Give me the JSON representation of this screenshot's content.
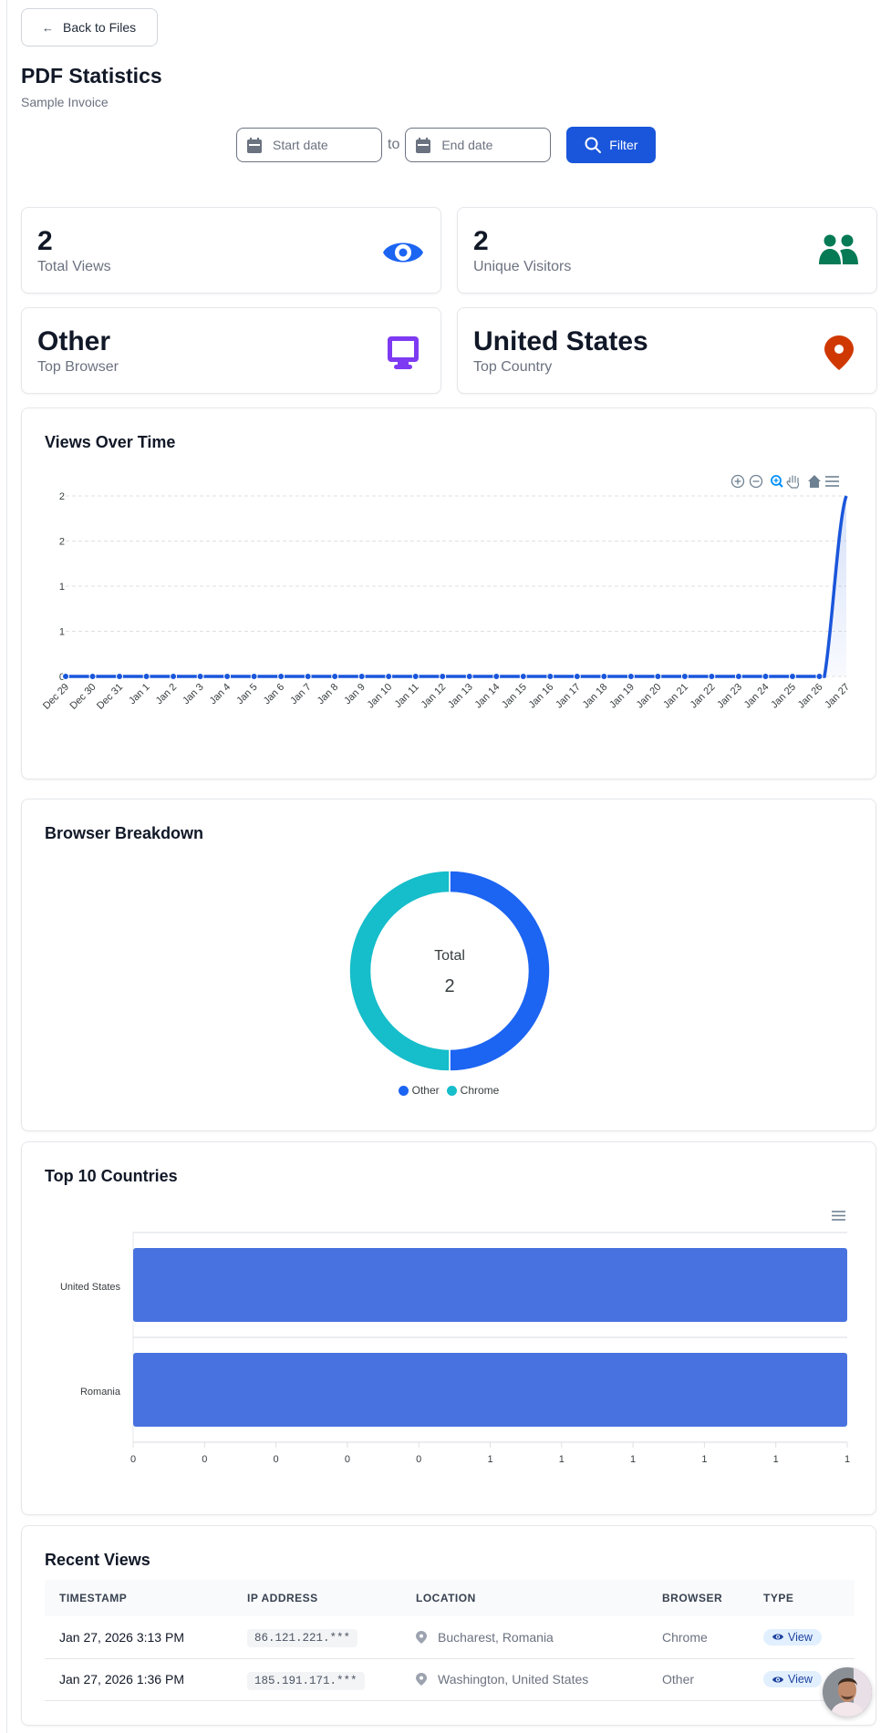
{
  "header": {
    "back_label": "Back to Files",
    "title": "PDF Statistics",
    "subtitle": "Sample Invoice"
  },
  "filter": {
    "start_placeholder": "Start date",
    "end_placeholder": "End date",
    "to_label": "to",
    "button_label": "Filter"
  },
  "stats": [
    {
      "value": "2",
      "label": "Total Views",
      "icon": "eye-icon",
      "color": "#1c64f2"
    },
    {
      "value": "2",
      "label": "Unique Visitors",
      "icon": "users-icon",
      "color": "#057a55"
    },
    {
      "value": "Other",
      "label": "Top Browser",
      "icon": "desktop-icon",
      "color": "#7e3af2"
    },
    {
      "value": "United States",
      "label": "Top Country",
      "icon": "map-pin-icon",
      "color": "#d03801"
    }
  ],
  "views_chart": {
    "title": "Views Over Time",
    "toolbar": [
      "zoom-in-icon",
      "zoom-out-icon",
      "selection-zoom-icon",
      "pan-hand-icon",
      "reset-home-icon",
      "menu-icon"
    ],
    "y_ticks": [
      "2",
      "2",
      "1",
      "1",
      "0"
    ],
    "line_color": "#1a56db"
  },
  "browser_chart": {
    "title": "Browser Breakdown",
    "center_label": "Total",
    "center_value": "2",
    "legend": [
      {
        "label": "Other",
        "color": "#1c64f2"
      },
      {
        "label": "Chrome",
        "color": "#16bdca"
      }
    ]
  },
  "countries_chart": {
    "title": "Top 10 Countries",
    "menu_icon": "menu-icon",
    "bar_color": "#4872e0",
    "x_ticks": [
      "0",
      "0",
      "0",
      "0",
      "0",
      "1",
      "1",
      "1",
      "1",
      "1",
      "1"
    ]
  },
  "recent_views": {
    "title": "Recent Views",
    "columns": [
      "TIMESTAMP",
      "IP ADDRESS",
      "LOCATION",
      "BROWSER",
      "TYPE"
    ],
    "rows": [
      {
        "timestamp": "Jan 27, 2026 3:13 PM",
        "ip": "86.121.221.***",
        "location": "Bucharest, Romania",
        "browser": "Chrome",
        "type": "View"
      },
      {
        "timestamp": "Jan 27, 2026 1:36 PM",
        "ip": "185.191.171.***",
        "location": "Washington, United States",
        "browser": "Other",
        "type": "View"
      }
    ]
  },
  "chart_data": [
    {
      "type": "area",
      "title": "Views Over Time",
      "xlabel": "",
      "ylabel": "",
      "categories": [
        "Dec 29",
        "Dec 30",
        "Dec 31",
        "Jan 1",
        "Jan 2",
        "Jan 3",
        "Jan 4",
        "Jan 5",
        "Jan 6",
        "Jan 7",
        "Jan 8",
        "Jan 9",
        "Jan 10",
        "Jan 11",
        "Jan 12",
        "Jan 13",
        "Jan 14",
        "Jan 15",
        "Jan 16",
        "Jan 17",
        "Jan 18",
        "Jan 19",
        "Jan 20",
        "Jan 21",
        "Jan 22",
        "Jan 23",
        "Jan 24",
        "Jan 25",
        "Jan 26",
        "Jan 27"
      ],
      "series": [
        {
          "name": "Views",
          "values": [
            0,
            0,
            0,
            0,
            0,
            0,
            0,
            0,
            0,
            0,
            0,
            0,
            0,
            0,
            0,
            0,
            0,
            0,
            0,
            0,
            0,
            0,
            0,
            0,
            0,
            0,
            0,
            0,
            0,
            2
          ]
        }
      ],
      "y_tick_labels": [
        "0",
        "1",
        "1",
        "2",
        "2"
      ],
      "ylim": [
        0,
        2
      ],
      "grid": true,
      "legend": "none"
    },
    {
      "type": "pie",
      "title": "Browser Breakdown",
      "donut": true,
      "categories": [
        "Other",
        "Chrome"
      ],
      "values": [
        1,
        1
      ],
      "center_text": "Total 2",
      "legend_position": "bottom"
    },
    {
      "type": "bar",
      "orientation": "horizontal",
      "title": "Top 10 Countries",
      "categories": [
        "United States",
        "Romania"
      ],
      "values": [
        1,
        1
      ],
      "x_tick_labels": [
        "0",
        "0",
        "0",
        "0",
        "0",
        "1",
        "1",
        "1",
        "1",
        "1",
        "1"
      ],
      "xlim": [
        0,
        1
      ],
      "grid": true
    }
  ]
}
